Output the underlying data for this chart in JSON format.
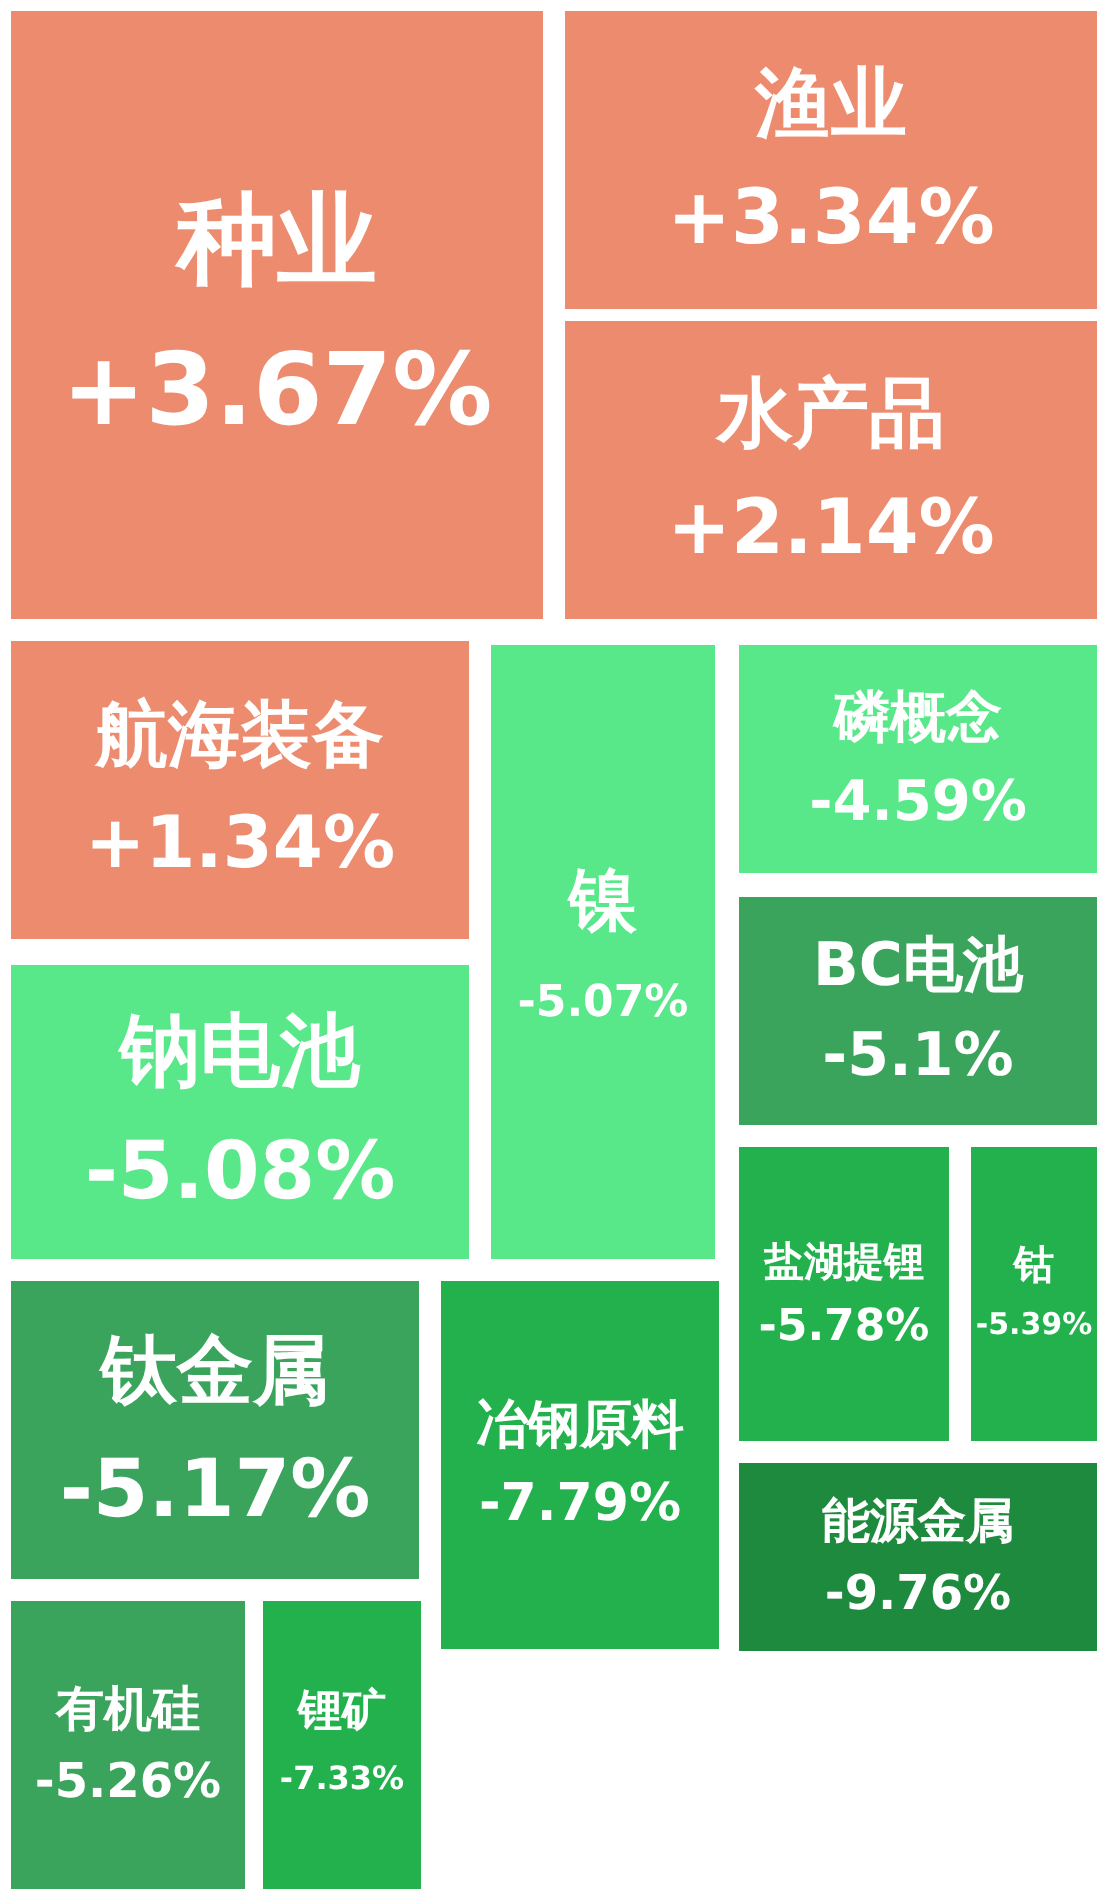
{
  "chart_data": {
    "type": "other",
    "categories": [
      "种业",
      "渔业",
      "水产品",
      "航海装备",
      "镍",
      "磷概念",
      "BC电池",
      "钠电池",
      "钛金属",
      "冶钢原料",
      "盐湖提锂",
      "钴",
      "能源金属",
      "有机硅",
      "锂矿"
    ],
    "values": [
      3.67,
      3.34,
      2.14,
      1.34,
      -5.07,
      -4.59,
      -5.1,
      -5.08,
      -5.17,
      -7.79,
      -5.78,
      -5.39,
      -9.76,
      -5.26,
      -7.33
    ],
    "value_labels": [
      "+3.67%",
      "+3.34%",
      "+2.14%",
      "+1.34%",
      "-5.07%",
      "-4.59%",
      "-5.1%",
      "-5.08%",
      "-5.17%",
      "-7.79%",
      "-5.78%",
      "-5.39%",
      "-9.76%",
      "-5.26%",
      "-7.33%"
    ],
    "colors": [
      "#ec8b6e",
      "#ec8b6e",
      "#ec8b6e",
      "#ec8b6e",
      "#58e88a",
      "#58e88a",
      "#3aa35c",
      "#58e88a",
      "#3aa35c",
      "#22b14c",
      "#22b14c",
      "#22b14c",
      "#1e8a3d",
      "#3aa35c",
      "#22b14c"
    ]
  }
}
